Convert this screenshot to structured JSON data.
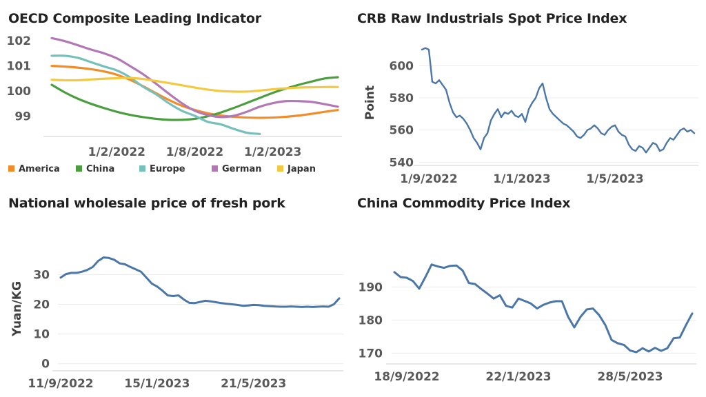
{
  "chart_data": [
    {
      "type": "line",
      "title": "OECD Composite Leading Indicator",
      "ylim": [
        98.2,
        102.3
      ],
      "y_ticks": [
        "99",
        "100",
        "101",
        "102"
      ],
      "x_tick_labels": [
        "1/2/2022",
        "1/8/2022",
        "1/2/2023"
      ],
      "x_tick_index": [
        5,
        11,
        17
      ],
      "legend": "bottom",
      "grid": false,
      "series": [
        {
          "name": "America",
          "color": "#F28C28",
          "values": [
            101.0,
            100.97,
            100.93,
            100.87,
            100.78,
            100.65,
            100.45,
            100.2,
            99.92,
            99.65,
            99.42,
            99.25,
            99.12,
            99.03,
            98.98,
            98.95,
            98.94,
            98.95,
            98.98,
            99.03,
            99.1,
            99.18,
            99.25
          ]
        },
        {
          "name": "China",
          "color": "#4A9E3E",
          "values": [
            100.25,
            99.95,
            99.7,
            99.5,
            99.33,
            99.18,
            99.06,
            98.97,
            98.9,
            98.86,
            98.86,
            98.9,
            99.0,
            99.15,
            99.33,
            99.53,
            99.73,
            99.93,
            100.1,
            100.25,
            100.38,
            100.5,
            100.55
          ]
        },
        {
          "name": "Europe",
          "color": "#76C0BB",
          "values": [
            101.4,
            101.4,
            101.32,
            101.15,
            100.98,
            100.82,
            100.55,
            100.18,
            99.88,
            99.52,
            99.22,
            99.02,
            98.78,
            98.68,
            98.5,
            98.35,
            98.3
          ]
        },
        {
          "name": "German",
          "color": "#B278B5",
          "values": [
            102.1,
            101.98,
            101.82,
            101.65,
            101.5,
            101.3,
            101.0,
            100.68,
            100.3,
            99.9,
            99.52,
            99.22,
            99.05,
            98.97,
            99.02,
            99.18,
            99.38,
            99.52,
            99.6,
            99.6,
            99.57,
            99.48,
            99.38
          ]
        },
        {
          "name": "Japan",
          "color": "#F2C940",
          "values": [
            100.45,
            100.43,
            100.43,
            100.46,
            100.49,
            100.51,
            100.52,
            100.48,
            100.4,
            100.32,
            100.23,
            100.14,
            100.06,
            100.0,
            99.98,
            99.98,
            100.02,
            100.07,
            100.11,
            100.14,
            100.15,
            100.16,
            100.16
          ]
        }
      ]
    },
    {
      "type": "line",
      "title": "CRB Raw Industrials Spot Price Index",
      "ylabel": "Point",
      "ylim": [
        538,
        616
      ],
      "y_ticks": [
        "540",
        "560",
        "580",
        "600"
      ],
      "x_tick_labels": [
        "1/9/2022",
        "1/1/2023",
        "1/5/2023"
      ],
      "x_tick_index": [
        2,
        29,
        56
      ],
      "grid": true,
      "series": [
        {
          "name": "",
          "color": "#4A76A8",
          "values": [
            610,
            611,
            610,
            590,
            589,
            591,
            588,
            585,
            577,
            571,
            568,
            569,
            567,
            564,
            560,
            555,
            552,
            548,
            555,
            558,
            566,
            570,
            573,
            568,
            571,
            570,
            572,
            569,
            568,
            570,
            565,
            573,
            577,
            580,
            586,
            589,
            580,
            573,
            570,
            568,
            566,
            564,
            563,
            561,
            559,
            556,
            555,
            557,
            560,
            561,
            563,
            561,
            558,
            557,
            560,
            562,
            563,
            559,
            557,
            556,
            551,
            548,
            547,
            550,
            549,
            546,
            549,
            552,
            551,
            547,
            548,
            552,
            555,
            554,
            557,
            560,
            561,
            559,
            560,
            558
          ]
        }
      ]
    },
    {
      "type": "line",
      "title": "National wholesale price of fresh pork",
      "ylabel": "Yuan/KG",
      "ylim": [
        -1,
        38
      ],
      "y_ticks": [
        "0",
        "10",
        "20",
        "30"
      ],
      "x_tick_labels": [
        "11/9/2022",
        "15/1/2023",
        "21/5/2023"
      ],
      "x_tick_index": [
        0,
        18,
        36
      ],
      "grid": true,
      "series": [
        {
          "name": "",
          "color": "#4A76A8",
          "values": [
            29,
            30.2,
            30.6,
            30.6,
            31,
            31.6,
            32.6,
            34.6,
            35.8,
            35.6,
            35,
            33.8,
            33.5,
            32.6,
            31.8,
            31,
            29,
            27,
            26,
            24.6,
            23,
            22.8,
            23,
            21.6,
            20.5,
            20.4,
            20.8,
            21.2,
            21,
            20.7,
            20.4,
            20.2,
            20,
            19.8,
            19.5,
            19.6,
            19.8,
            19.7,
            19.5,
            19.4,
            19.3,
            19.2,
            19.2,
            19.3,
            19.2,
            19.1,
            19.2,
            19.1,
            19.2,
            19.3,
            19.2,
            20,
            22
          ]
        }
      ]
    },
    {
      "type": "line",
      "title": "China Commodity Price Index",
      "ylim": [
        168,
        198
      ],
      "y_ticks": [
        "170",
        "180",
        "190"
      ],
      "x_tick_labels": [
        "18/9/2022",
        "22/1/2023",
        "28/5/2023"
      ],
      "x_tick_index": [
        2,
        20,
        38
      ],
      "grid": true,
      "series": [
        {
          "name": "",
          "color": "#4A76A8",
          "values": [
            194.5,
            193,
            192.8,
            191.8,
            189.5,
            193,
            196.8,
            196.2,
            195.8,
            196.4,
            196.5,
            195,
            191.2,
            190.9,
            189.4,
            188,
            186.5,
            187.5,
            184.3,
            183.8,
            186.5,
            185.8,
            185,
            183.5,
            184.6,
            185.3,
            185.7,
            185.7,
            181,
            177.8,
            181,
            183.2,
            183.5,
            181.5,
            178.5,
            174,
            173,
            172.5,
            170.8,
            170.3,
            171.5,
            170.5,
            171.6,
            170.7,
            171.5,
            174.5,
            174.7,
            178.5,
            182
          ]
        }
      ]
    }
  ]
}
